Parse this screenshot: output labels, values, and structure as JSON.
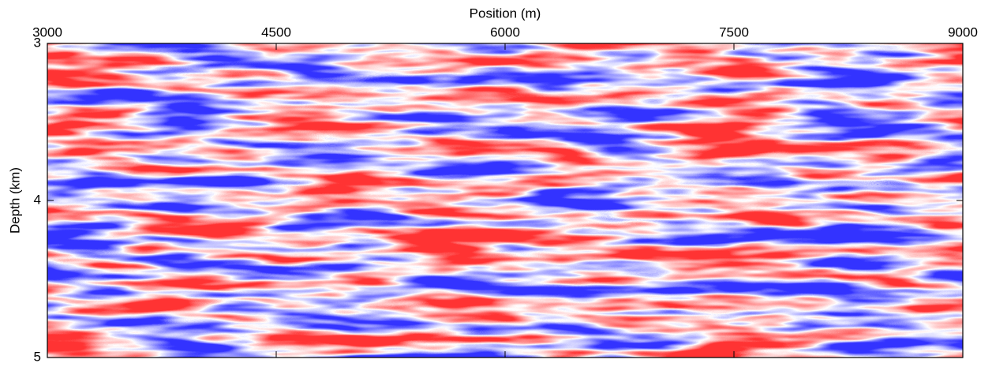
{
  "chart_data": {
    "type": "image",
    "x_label": "Position (m)",
    "y_label": "Depth (km)",
    "xlim": [
      3000,
      9000
    ],
    "xticks": [
      3000,
      4500,
      6000,
      7500,
      9000
    ],
    "ylim": [
      3,
      5
    ],
    "yticks": [
      3,
      4,
      5
    ],
    "y_inverted": true,
    "colormap": [
      "#3333ff",
      "#ffffff",
      "#ff3333"
    ]
  }
}
